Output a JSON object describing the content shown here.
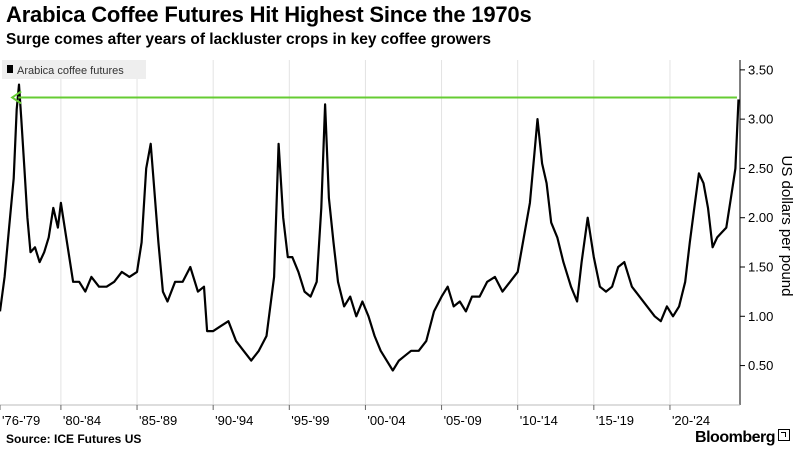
{
  "title": "Arabica Coffee Futures Hit Highest Since the 1970s",
  "subtitle": "Surge comes after years of lackluster crops in key coffee growers",
  "source": "Source: ICE Futures US",
  "brand": "Bloomberg",
  "colors": {
    "series": "#000000",
    "highlight_line": "#66cc33",
    "grid": "#e3e3e3",
    "legend_bg": "#eeeeee"
  },
  "chart_data": {
    "type": "line",
    "legend": [
      "Arabica coffee futures"
    ],
    "ylabel": "US dollars per pound",
    "ylim": [
      0.1,
      3.6
    ],
    "yticks": [
      0.5,
      1.0,
      1.5,
      2.0,
      2.5,
      3.0,
      3.5
    ],
    "ytick_labels": [
      "0.50",
      "1.00",
      "1.50",
      "2.00",
      "2.50",
      "3.00",
      "3.50"
    ],
    "xlim": [
      1976,
      2024.6
    ],
    "xticks": [
      1976,
      1980,
      1985,
      1990,
      1995,
      2000,
      2005,
      2010,
      2015,
      2020
    ],
    "xtick_labels": [
      "'76-'79",
      "'80-'84",
      "'85-'89",
      "'90-'94",
      "'95-'99",
      "'00-'04",
      "'05-'09",
      "'10-'14",
      "'15-'19",
      "'20-'24"
    ],
    "grid": true,
    "legend_position": "top-left",
    "annotations": [
      {
        "type": "horizontal-arrow",
        "y": 3.22,
        "from_x": 2024.4,
        "to_x": 1976.8,
        "color": "#66cc33"
      }
    ],
    "series": [
      {
        "name": "Arabica coffee futures",
        "x": [
          1976.0,
          1976.3,
          1976.6,
          1976.9,
          1977.1,
          1977.25,
          1977.4,
          1977.6,
          1977.8,
          1978.0,
          1978.3,
          1978.6,
          1978.9,
          1979.2,
          1979.5,
          1979.8,
          1980.0,
          1980.4,
          1980.8,
          1981.2,
          1981.6,
          1982.0,
          1982.5,
          1983.0,
          1983.5,
          1984.0,
          1984.5,
          1985.0,
          1985.3,
          1985.6,
          1985.9,
          1986.1,
          1986.4,
          1986.7,
          1987.0,
          1987.5,
          1988.0,
          1988.5,
          1989.0,
          1989.4,
          1989.6,
          1990.0,
          1990.5,
          1991.0,
          1991.5,
          1992.0,
          1992.5,
          1993.0,
          1993.5,
          1994.0,
          1994.3,
          1994.6,
          1994.9,
          1995.2,
          1995.6,
          1996.0,
          1996.4,
          1996.8,
          1997.1,
          1997.35,
          1997.6,
          1997.9,
          1998.2,
          1998.6,
          1999.0,
          1999.4,
          1999.8,
          2000.2,
          2000.6,
          2001.0,
          2001.4,
          2001.8,
          2002.2,
          2002.6,
          2003.0,
          2003.5,
          2004.0,
          2004.5,
          2005.0,
          2005.4,
          2005.8,
          2006.2,
          2006.6,
          2007.0,
          2007.5,
          2008.0,
          2008.5,
          2009.0,
          2009.5,
          2010.0,
          2010.4,
          2010.8,
          2011.1,
          2011.3,
          2011.6,
          2011.9,
          2012.2,
          2012.6,
          2013.0,
          2013.5,
          2013.9,
          2014.2,
          2014.6,
          2015.0,
          2015.4,
          2015.8,
          2016.2,
          2016.6,
          2017.0,
          2017.5,
          2018.0,
          2018.5,
          2019.0,
          2019.4,
          2019.8,
          2020.2,
          2020.6,
          2021.0,
          2021.3,
          2021.6,
          2021.9,
          2022.2,
          2022.5,
          2022.8,
          2023.1,
          2023.4,
          2023.7,
          2024.0,
          2024.3,
          2024.5
        ],
        "values": [
          1.05,
          1.4,
          1.9,
          2.4,
          3.1,
          3.35,
          3.0,
          2.5,
          2.0,
          1.65,
          1.7,
          1.55,
          1.65,
          1.8,
          2.1,
          1.9,
          2.15,
          1.75,
          1.35,
          1.35,
          1.25,
          1.4,
          1.3,
          1.3,
          1.35,
          1.45,
          1.4,
          1.45,
          1.75,
          2.5,
          2.75,
          2.35,
          1.75,
          1.25,
          1.15,
          1.35,
          1.35,
          1.5,
          1.25,
          1.3,
          0.85,
          0.85,
          0.9,
          0.95,
          0.75,
          0.65,
          0.55,
          0.65,
          0.8,
          1.4,
          2.75,
          2.0,
          1.6,
          1.6,
          1.45,
          1.25,
          1.2,
          1.35,
          2.1,
          3.15,
          2.2,
          1.75,
          1.35,
          1.1,
          1.2,
          1.0,
          1.15,
          1.0,
          0.8,
          0.65,
          0.55,
          0.45,
          0.55,
          0.6,
          0.65,
          0.65,
          0.75,
          1.05,
          1.2,
          1.3,
          1.1,
          1.15,
          1.05,
          1.2,
          1.2,
          1.35,
          1.4,
          1.25,
          1.35,
          1.45,
          1.8,
          2.15,
          2.65,
          3.0,
          2.55,
          2.35,
          1.95,
          1.8,
          1.55,
          1.3,
          1.15,
          1.55,
          2.0,
          1.6,
          1.3,
          1.25,
          1.3,
          1.5,
          1.55,
          1.3,
          1.2,
          1.1,
          1.0,
          0.95,
          1.1,
          1.0,
          1.1,
          1.35,
          1.75,
          2.1,
          2.45,
          2.35,
          2.1,
          1.7,
          1.8,
          1.85,
          1.9,
          2.2,
          2.5,
          3.2
        ]
      }
    ]
  }
}
